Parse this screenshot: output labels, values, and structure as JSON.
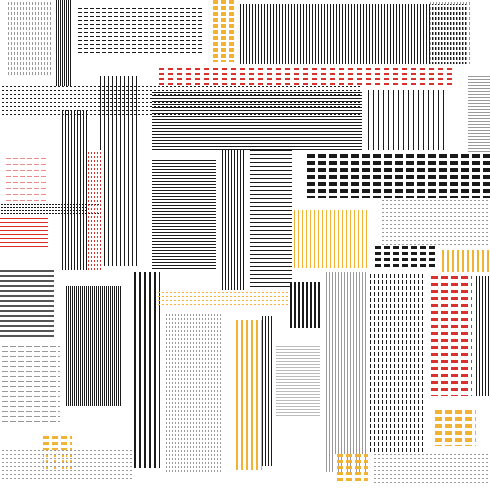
{
  "artwork": {
    "palette": {
      "black": "#1a1a1a",
      "gray": "#9a9a9a",
      "red": "#d8322f",
      "orange": "#f2b233",
      "pink": "#ef8a8a"
    }
  }
}
